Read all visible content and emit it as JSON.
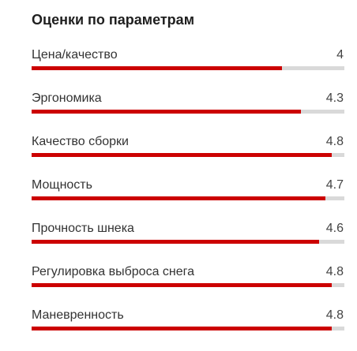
{
  "section": {
    "title": "Оценки по параметрам",
    "max_score": 5,
    "accent_color": "#cc0000",
    "track_color": "#d9d9d9"
  },
  "ratings": [
    {
      "label": "Цена/качество",
      "value": "4",
      "score": 4
    },
    {
      "label": "Эргономика",
      "value": "4.3",
      "score": 4.3
    },
    {
      "label": "Качество сборки",
      "value": "4.8",
      "score": 4.8
    },
    {
      "label": "Мощность",
      "value": "4.7",
      "score": 4.7
    },
    {
      "label": "Прочность шнека",
      "value": "4.6",
      "score": 4.6
    },
    {
      "label": "Регулировка выброса снега",
      "value": "4.8",
      "score": 4.8
    },
    {
      "label": "Маневренность",
      "value": "4.8",
      "score": 4.8
    }
  ]
}
